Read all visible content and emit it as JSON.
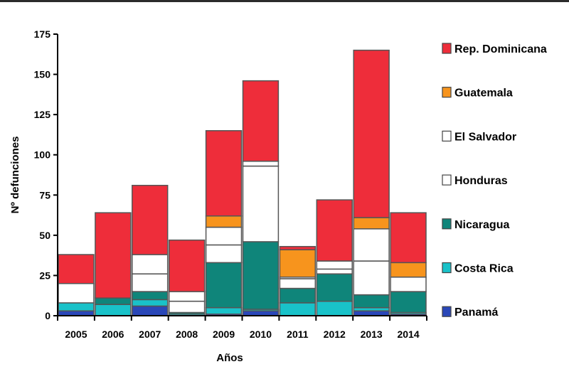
{
  "chart_data": {
    "type": "bar",
    "stacked": true,
    "categories": [
      "2005",
      "2006",
      "2007",
      "2008",
      "2009",
      "2010",
      "2011",
      "2012",
      "2013",
      "2014"
    ],
    "xlabel": "Años",
    "ylabel": "Nº defunciones",
    "ylim": [
      0,
      175
    ],
    "yticks": [
      0,
      25,
      50,
      75,
      100,
      125,
      150,
      175
    ],
    "grid": false,
    "legend_position": "right",
    "series": [
      {
        "name": "Panamá",
        "color": "#2a47b8",
        "values": [
          3,
          0,
          6,
          0,
          1,
          3,
          0,
          0,
          3,
          1
        ]
      },
      {
        "name": "Costa Rica",
        "color": "#19c2c9",
        "values": [
          5,
          7,
          4,
          1,
          4,
          1,
          8,
          9,
          2,
          1
        ]
      },
      {
        "name": "Nicaragua",
        "color": "#0f857a",
        "values": [
          0,
          4,
          5,
          1,
          28,
          42,
          9,
          17,
          8,
          13
        ]
      },
      {
        "name": "Honduras",
        "color": "#ffffff",
        "values": [
          12,
          0,
          11,
          7,
          11,
          47,
          6,
          3,
          21,
          9
        ]
      },
      {
        "name": "El Salvador",
        "color": "#ffffff",
        "values": [
          0,
          0,
          12,
          6,
          11,
          3,
          1,
          5,
          20,
          0
        ]
      },
      {
        "name": "Guatemala",
        "color": "#f7941d",
        "values": [
          0,
          0,
          0,
          0,
          7,
          0,
          17,
          0,
          7,
          9
        ]
      },
      {
        "name": "Rep. Dominicana",
        "color": "#ee2d3a",
        "values": [
          18,
          53,
          43,
          32,
          53,
          50,
          2,
          38,
          104,
          31
        ]
      }
    ]
  }
}
